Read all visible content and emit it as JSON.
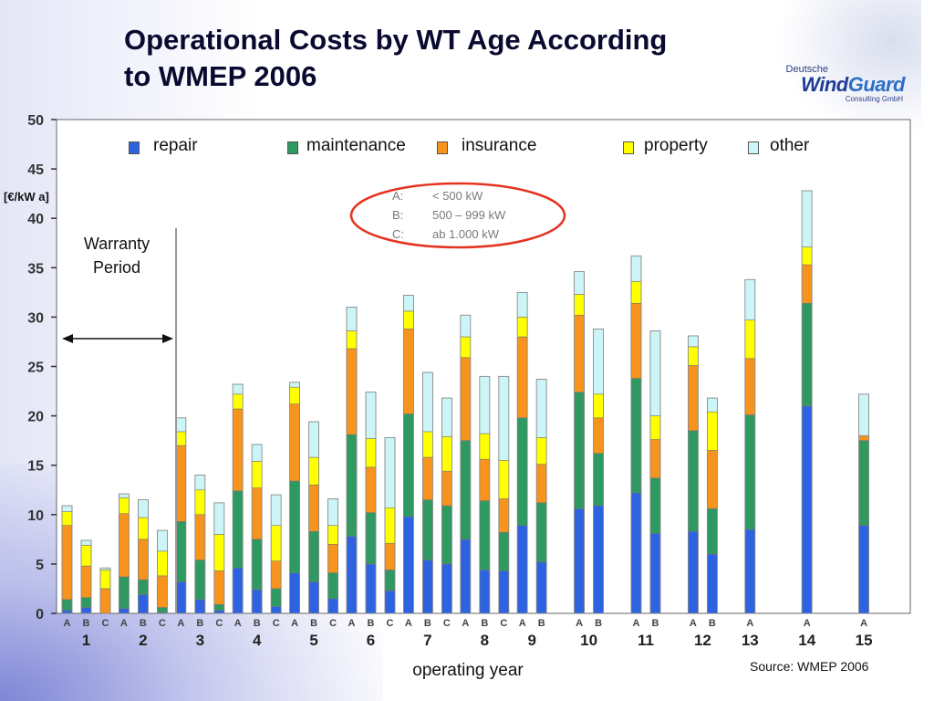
{
  "slide": {
    "title_line1": "Operational Costs by WT Age According",
    "title_line2": "to WMEP 2006",
    "source": "Source: WMEP 2006",
    "warranty_line1": "Warranty",
    "warranty_line2": "Period",
    "notes": [
      {
        "key": "A:",
        "value": "< 500 kW"
      },
      {
        "key": "B:",
        "value": "500 – 999 kW"
      },
      {
        "key": "C:",
        "value": "ab 1.000 kW"
      }
    ]
  },
  "logo": {
    "top": "Deutsche",
    "main1": "Wind",
    "main2": "Guard",
    "sub": "Consulting GmbH"
  },
  "colors": {
    "repair": "#2d63e0",
    "maintenance": "#2f9962",
    "insurance": "#f7941d",
    "property": "#ffff00",
    "other": "#ccf5f7",
    "ellipse": "#e53322"
  },
  "chart_data": {
    "type": "bar",
    "stacked": true,
    "ylabel": "[€/kW a]",
    "xlabel": "operating year",
    "ylim": [
      0,
      50
    ],
    "yticks": [
      0,
      5,
      10,
      15,
      20,
      25,
      30,
      35,
      40,
      45,
      50
    ],
    "grid": false,
    "legend": "top",
    "series_names": [
      "repair",
      "maintenance",
      "insurance",
      "property",
      "other"
    ],
    "years": [
      {
        "year": "1",
        "bars": [
          {
            "cls": "A",
            "values": [
              0.3,
              1.1,
              7.5,
              1.4,
              0.6
            ]
          },
          {
            "cls": "B",
            "values": [
              0.6,
              1.0,
              3.2,
              2.1,
              0.5
            ]
          },
          {
            "cls": "C",
            "values": [
              0.0,
              0.0,
              2.5,
              1.9,
              0.2
            ]
          }
        ]
      },
      {
        "year": "2",
        "bars": [
          {
            "cls": "A",
            "values": [
              0.5,
              3.2,
              6.4,
              1.6,
              0.4
            ]
          },
          {
            "cls": "B",
            "values": [
              1.9,
              1.5,
              4.1,
              2.2,
              1.8
            ]
          },
          {
            "cls": "C",
            "values": [
              0.1,
              0.5,
              3.2,
              2.5,
              2.1
            ]
          }
        ]
      },
      {
        "year": "3",
        "bars": [
          {
            "cls": "A",
            "values": [
              3.2,
              6.1,
              7.7,
              1.4,
              1.4
            ]
          },
          {
            "cls": "B",
            "values": [
              1.4,
              4.0,
              4.6,
              2.5,
              1.5
            ]
          },
          {
            "cls": "C",
            "values": [
              0.3,
              0.6,
              3.4,
              3.7,
              3.2
            ]
          }
        ]
      },
      {
        "year": "4",
        "bars": [
          {
            "cls": "A",
            "values": [
              4.6,
              7.8,
              8.3,
              1.5,
              1.0
            ]
          },
          {
            "cls": "B",
            "values": [
              2.4,
              5.1,
              5.2,
              2.7,
              1.7
            ]
          },
          {
            "cls": "C",
            "values": [
              0.7,
              1.8,
              2.8,
              3.6,
              3.1
            ]
          }
        ]
      },
      {
        "year": "5",
        "bars": [
          {
            "cls": "A",
            "values": [
              4.1,
              9.3,
              7.8,
              1.7,
              0.5
            ]
          },
          {
            "cls": "B",
            "values": [
              3.2,
              5.1,
              4.7,
              2.8,
              3.6
            ]
          },
          {
            "cls": "C",
            "values": [
              1.5,
              2.6,
              2.9,
              1.9,
              2.7
            ]
          }
        ]
      },
      {
        "year": "6",
        "bars": [
          {
            "cls": "A",
            "values": [
              7.8,
              10.3,
              8.7,
              1.8,
              2.4
            ]
          },
          {
            "cls": "B",
            "values": [
              5.0,
              5.2,
              4.6,
              2.9,
              4.7
            ]
          },
          {
            "cls": "C",
            "values": [
              2.3,
              2.1,
              2.7,
              3.6,
              7.1
            ]
          }
        ]
      },
      {
        "year": "7",
        "bars": [
          {
            "cls": "A",
            "values": [
              9.8,
              10.4,
              8.6,
              1.8,
              1.6
            ]
          },
          {
            "cls": "B",
            "values": [
              5.4,
              6.1,
              4.3,
              2.6,
              6.0
            ]
          },
          {
            "cls": "C",
            "values": [
              5.0,
              5.9,
              3.5,
              3.5,
              3.9
            ]
          }
        ]
      },
      {
        "year": "8",
        "bars": [
          {
            "cls": "A",
            "values": [
              7.5,
              10.0,
              8.4,
              2.1,
              2.2
            ]
          },
          {
            "cls": "B",
            "values": [
              4.4,
              7.0,
              4.2,
              2.6,
              5.8
            ]
          },
          {
            "cls": "C",
            "values": [
              4.3,
              3.9,
              3.4,
              3.9,
              8.5
            ]
          }
        ]
      },
      {
        "year": "9",
        "bars": [
          {
            "cls": "A",
            "values": [
              8.9,
              10.9,
              8.2,
              2.0,
              2.5
            ]
          },
          {
            "cls": "B",
            "values": [
              5.2,
              6.0,
              3.9,
              2.7,
              5.9
            ]
          }
        ]
      },
      {
        "year": "10",
        "bars": [
          {
            "cls": "A",
            "values": [
              10.6,
              11.8,
              7.8,
              2.1,
              2.3
            ]
          },
          {
            "cls": "B",
            "values": [
              10.9,
              5.3,
              3.6,
              2.4,
              6.6
            ]
          }
        ]
      },
      {
        "year": "11",
        "bars": [
          {
            "cls": "A",
            "values": [
              12.2,
              11.6,
              7.6,
              2.2,
              2.6
            ]
          },
          {
            "cls": "B",
            "values": [
              8.1,
              5.6,
              3.9,
              2.4,
              8.6
            ]
          }
        ]
      },
      {
        "year": "12",
        "bars": [
          {
            "cls": "A",
            "values": [
              8.3,
              10.2,
              6.6,
              1.9,
              1.1
            ]
          },
          {
            "cls": "B",
            "values": [
              6.0,
              4.6,
              5.9,
              3.9,
              1.4
            ]
          }
        ]
      },
      {
        "year": "13",
        "bars": [
          {
            "cls": "A",
            "values": [
              8.5,
              11.6,
              5.7,
              3.9,
              4.1
            ]
          }
        ]
      },
      {
        "year": "14",
        "bars": [
          {
            "cls": "A",
            "values": [
              21.0,
              10.4,
              3.9,
              1.8,
              5.7
            ]
          }
        ]
      },
      {
        "year": "15",
        "bars": [
          {
            "cls": "A",
            "values": [
              8.9,
              8.6,
              0.5,
              0.0,
              4.2
            ]
          }
        ]
      }
    ]
  },
  "legend": [
    {
      "key": "repair",
      "label": "repair"
    },
    {
      "key": "maintenance",
      "label": "maintenance"
    },
    {
      "key": "insurance",
      "label": "insurance"
    },
    {
      "key": "property",
      "label": "property"
    },
    {
      "key": "other",
      "label": "other"
    }
  ]
}
